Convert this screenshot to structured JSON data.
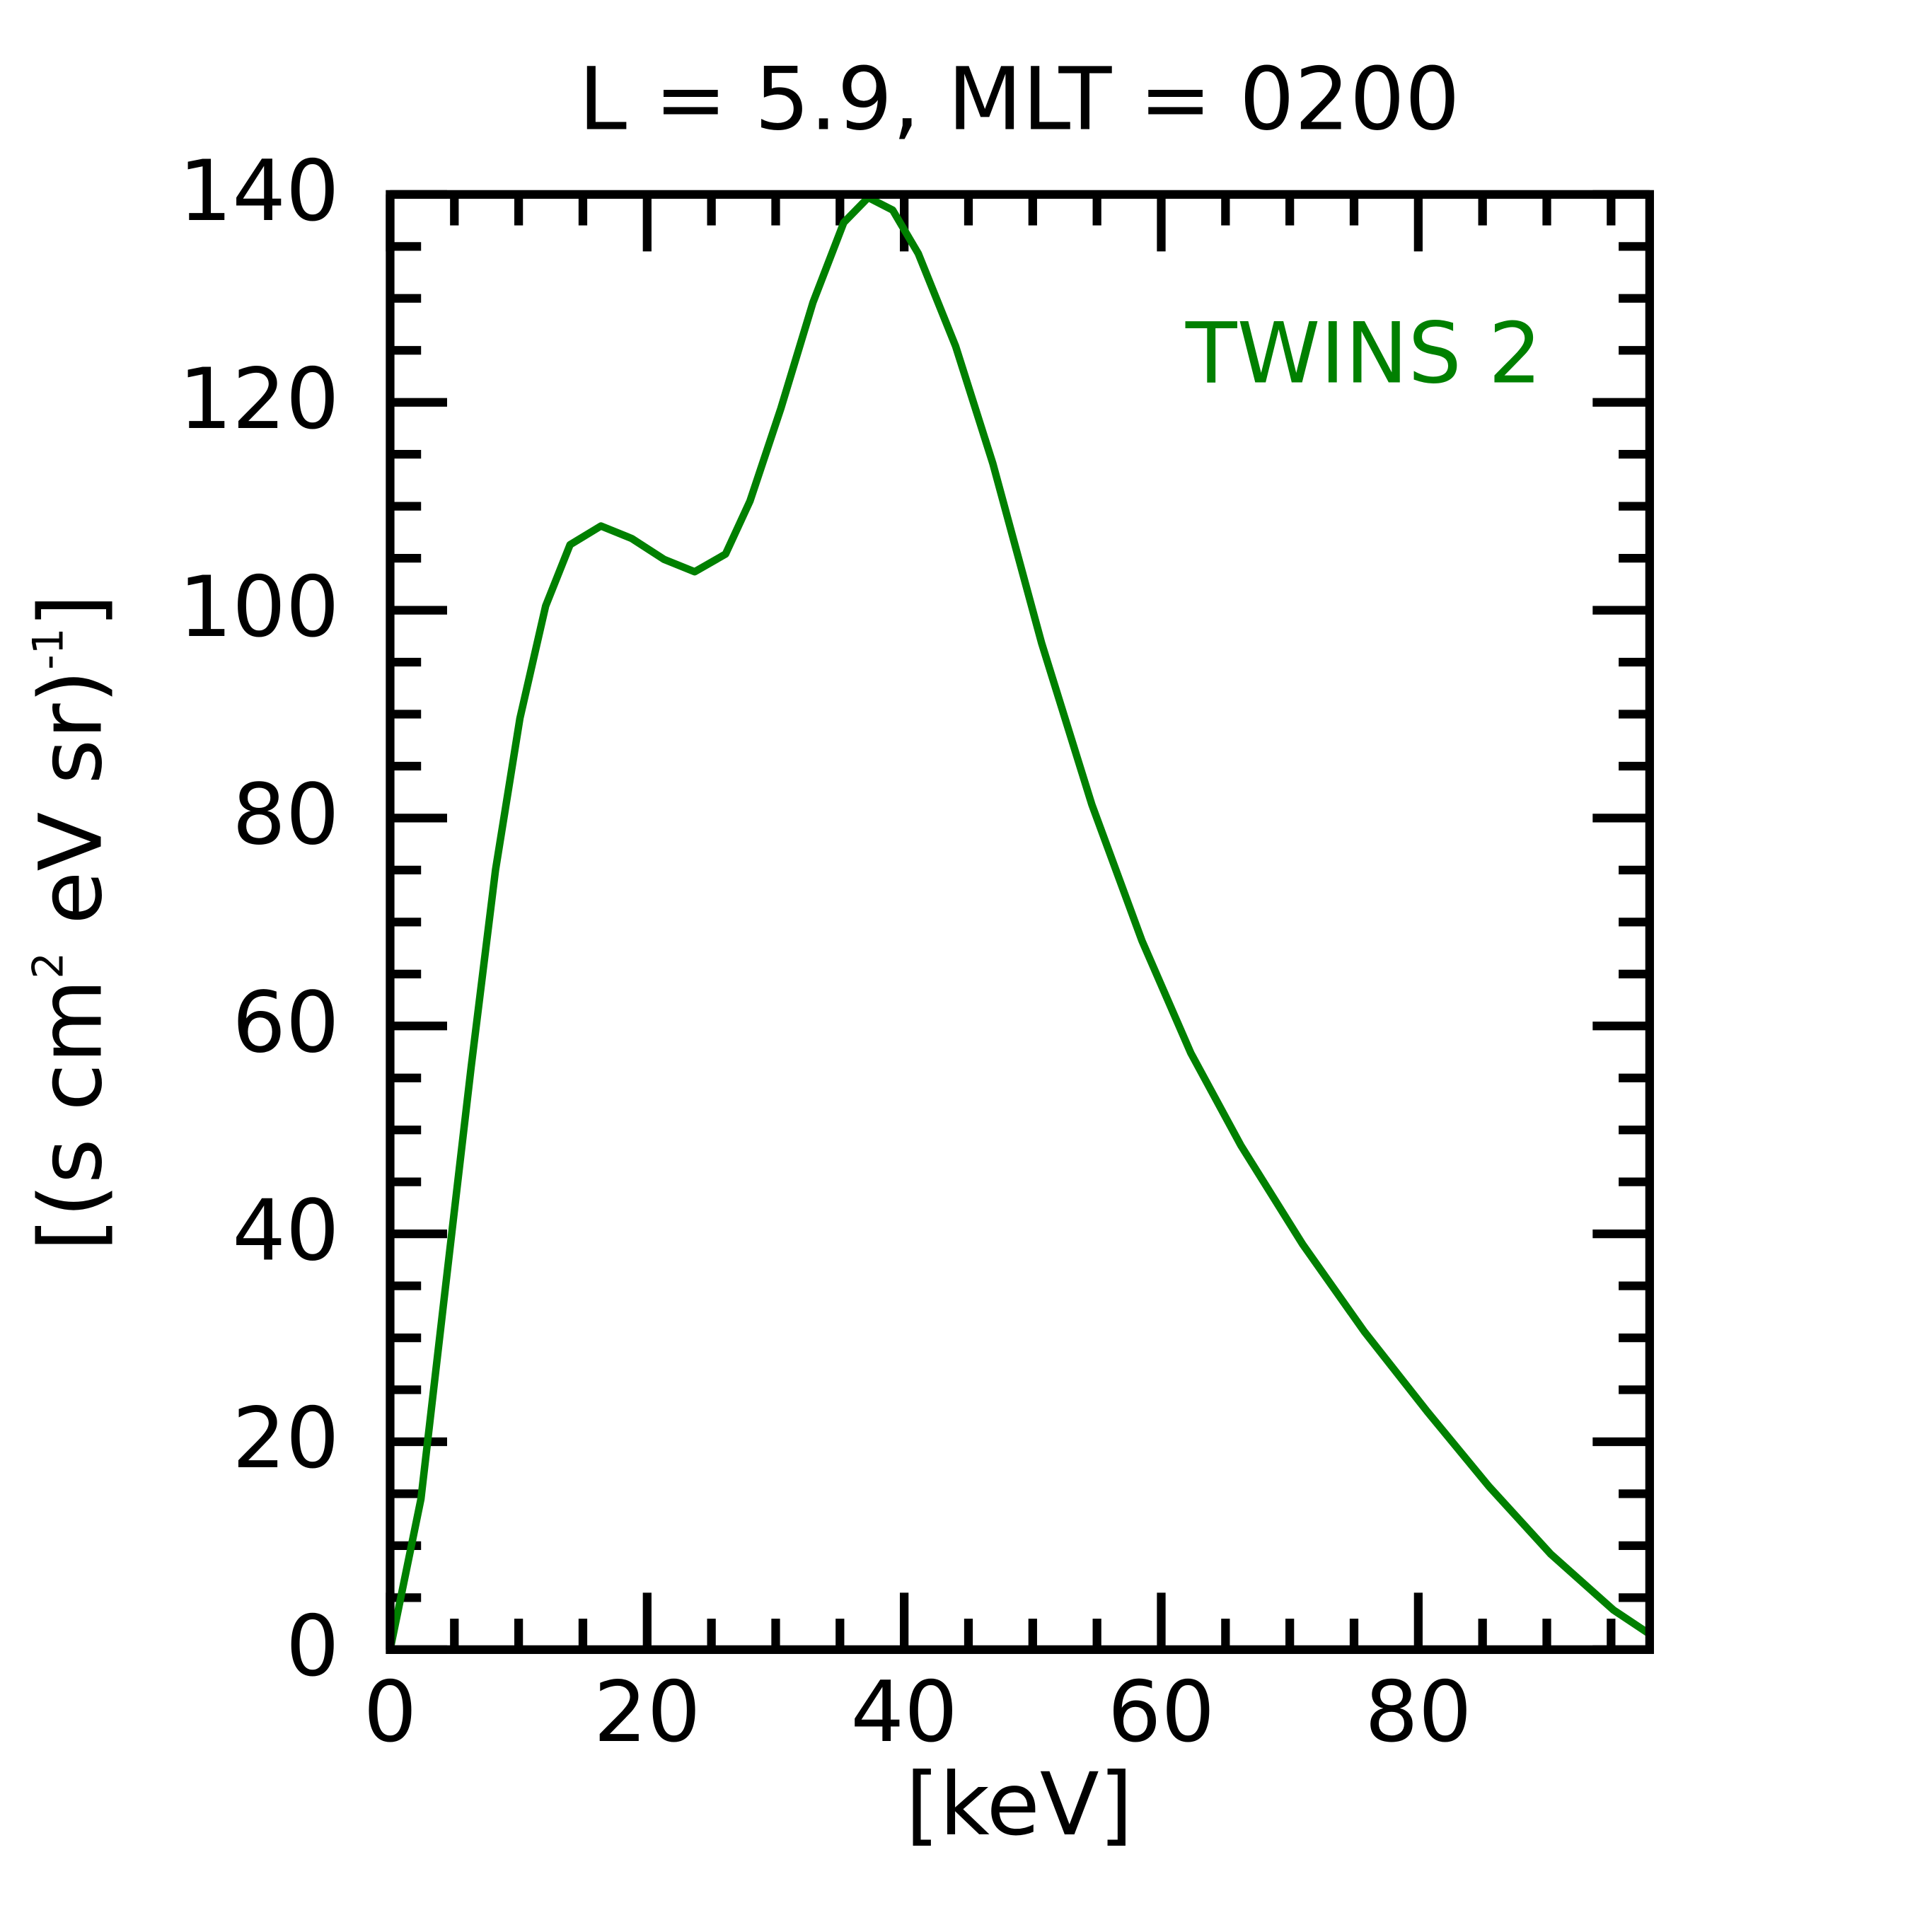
{
  "chart_data": {
    "type": "line",
    "title": "L =  5.9, MLT = 0200",
    "xlabel": "[keV]",
    "ylabel": [
      "[(s cm",
      "2",
      " eV sr)",
      "-1",
      "]"
    ],
    "x": [
      0,
      2.4,
      4.3,
      6.3,
      8.2,
      10.1,
      12.1,
      14.0,
      16.4,
      18.8,
      21.3,
      23.7,
      26.1,
      28.0,
      30.4,
      32.9,
      35.3,
      37.2,
      39.1,
      41.1,
      44.0,
      46.9,
      50.7,
      54.6,
      58.5,
      62.3,
      66.2,
      71.0,
      75.8,
      80.7,
      85.5,
      90.3,
      95.2,
      98.0
    ],
    "series": [
      {
        "name": "TWINS 2",
        "color": "#008000",
        "values": [
          0,
          14.5,
          34.8,
          56,
          75,
          89.6,
          100.4,
          106.3,
          108.1,
          106.9,
          104.9,
          103.7,
          105.4,
          110.5,
          119.4,
          129.6,
          137.3,
          139.7,
          138.5,
          134.3,
          125.4,
          114.1,
          96.8,
          81.3,
          68.2,
          57.4,
          48.5,
          39.0,
          30.6,
          22.9,
          15.7,
          9.2,
          3.8,
          1.5
        ]
      }
    ],
    "xlim": [
      0,
      98
    ],
    "ylim": [
      0,
      140
    ],
    "xticks": [
      0,
      20,
      40,
      60,
      80
    ],
    "yticks": [
      0,
      20,
      40,
      60,
      80,
      100,
      120,
      140
    ],
    "xminorticks": [
      5,
      10,
      15,
      25,
      30,
      35,
      45,
      50,
      55,
      65,
      70,
      75,
      85,
      90,
      95
    ],
    "yminorticks": [
      5,
      10,
      15,
      25,
      30,
      35,
      45,
      50,
      55,
      65,
      70,
      75,
      85,
      90,
      95,
      105,
      110,
      115,
      125,
      130,
      135
    ],
    "grid": false
  }
}
